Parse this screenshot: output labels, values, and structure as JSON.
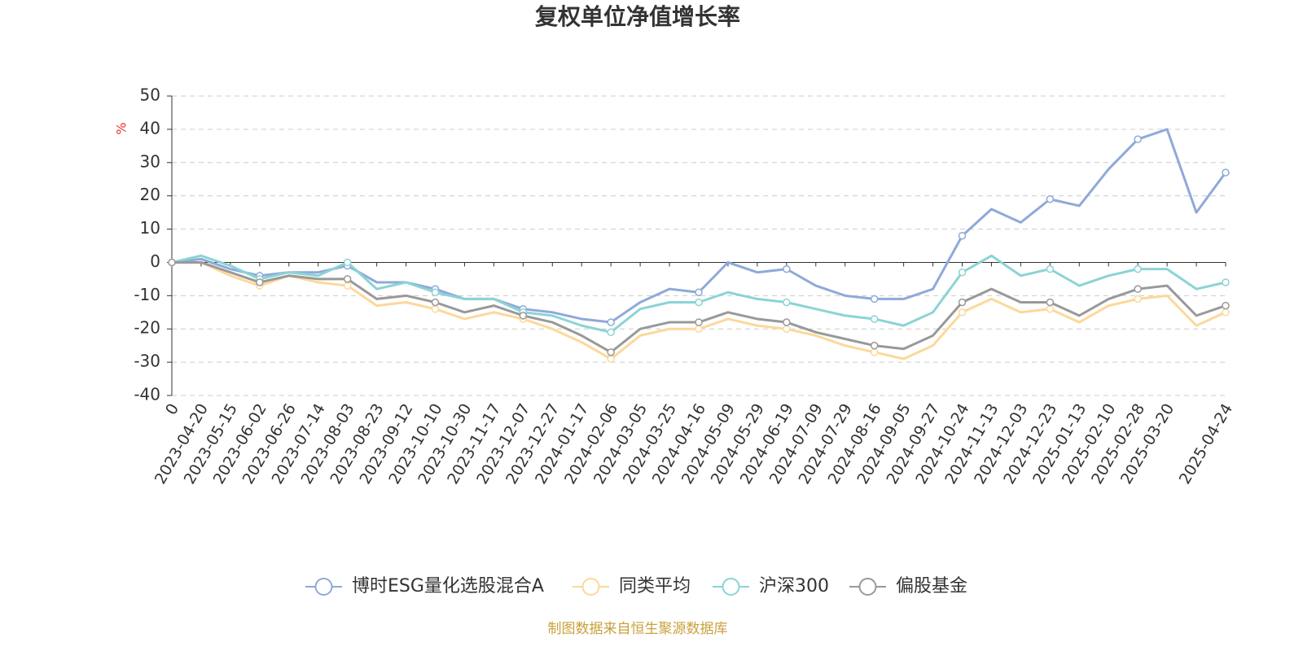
{
  "chart_data": {
    "type": "line",
    "title": "复权单位净值增长率",
    "y_label": "%",
    "source": "制图数据来自恒生聚源数据库",
    "categories": [
      "0",
      "2023-04-20",
      "2023-05-15",
      "2023-06-02",
      "2023-06-26",
      "2023-07-14",
      "2023-08-03",
      "2023-08-23",
      "2023-09-12",
      "2023-10-10",
      "2023-10-30",
      "2023-11-17",
      "2023-12-07",
      "2023-12-27",
      "2024-01-17",
      "2024-02-06",
      "2024-03-05",
      "2024-03-25",
      "2024-04-16",
      "2024-05-09",
      "2024-05-29",
      "2024-06-19",
      "2024-07-09",
      "2024-07-29",
      "2024-08-16",
      "2024-09-05",
      "2024-09-27",
      "2024-10-24",
      "2024-11-13",
      "2024-12-03",
      "2024-12-23",
      "2025-01-13",
      "2025-02-10",
      "2025-02-28",
      "2025-03-20",
      null,
      "2025-04-24"
    ],
    "series": [
      {
        "name": "博时ESG量化选股混合A",
        "color": "#8fa9d9",
        "values": [
          0,
          1,
          -2,
          -4,
          -3,
          -3,
          -1,
          -6,
          -6,
          -8,
          -11,
          -11,
          -14,
          -15,
          -17,
          -18,
          -12,
          -8,
          -9,
          0,
          -3,
          -2,
          -7,
          -10,
          -11,
          -11,
          -8,
          8,
          16,
          12,
          19,
          17,
          28,
          37,
          40,
          15,
          27
        ]
      },
      {
        "name": "同类平均",
        "color": "#fcd89a",
        "values": [
          0,
          0,
          -4,
          -7,
          -4,
          -6,
          -7,
          -13,
          -12,
          -14,
          -17,
          -15,
          -17,
          -20,
          -24,
          -29,
          -22,
          -20,
          -20,
          -17,
          -19,
          -20,
          -22,
          -25,
          -27,
          -29,
          -25,
          -15,
          -11,
          -15,
          -14,
          -18,
          -13,
          -11,
          -10,
          -19,
          -15
        ]
      },
      {
        "name": "沪深300",
        "color": "#8bd4d5",
        "values": [
          0,
          2,
          -1,
          -5,
          -3,
          -4,
          0,
          -8,
          -6,
          -9,
          -11,
          -11,
          -15,
          -16,
          -19,
          -21,
          -14,
          -12,
          -12,
          -9,
          -11,
          -12,
          -14,
          -16,
          -17,
          -19,
          -15,
          -3,
          2,
          -4,
          -2,
          -7,
          -4,
          -2,
          -2,
          -8,
          -6
        ]
      },
      {
        "name": "偏股基金",
        "color": "#999999",
        "values": [
          0,
          0,
          -3,
          -6,
          -4,
          -5,
          -5,
          -11,
          -10,
          -12,
          -15,
          -13,
          -16,
          -18,
          -22,
          -27,
          -20,
          -18,
          -18,
          -15,
          -17,
          -18,
          -21,
          -23,
          -25,
          -26,
          -22,
          -12,
          -8,
          -12,
          -12,
          -16,
          -11,
          -8,
          -7,
          -16,
          -13
        ]
      }
    ],
    "ylim": [
      -40,
      50
    ],
    "yticks": [
      -40,
      -30,
      -20,
      -10,
      0,
      10,
      20,
      30,
      40,
      50
    ],
    "grid": true
  }
}
